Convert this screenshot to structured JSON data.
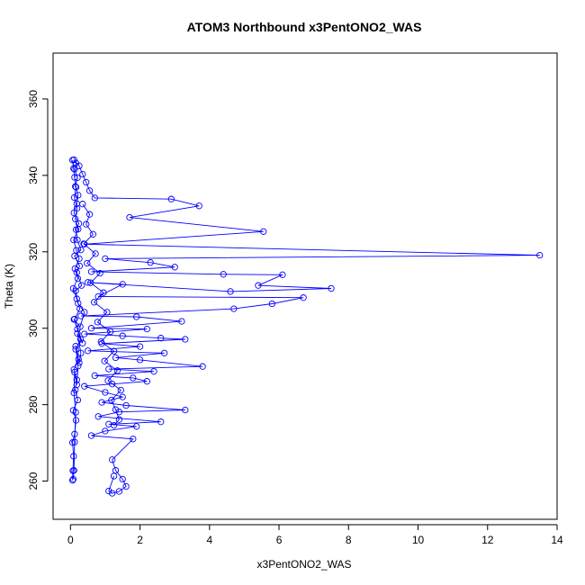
{
  "chart_data": {
    "type": "line",
    "title": "ATOM3 Northbound x3PentONO2_WAS",
    "xlabel": "x3PentONO2_WAS",
    "ylabel": "Theta (K)",
    "xlim": [
      -0.5,
      14
    ],
    "ylim": [
      250,
      372
    ],
    "xticks": [
      0,
      2,
      4,
      6,
      8,
      10,
      12,
      14
    ],
    "yticks": [
      260,
      280,
      300,
      320,
      340,
      360
    ],
    "grid": false,
    "marker": "open-circle",
    "color": "#0000ff",
    "series": [
      {
        "points": [
          [
            0.08,
            260.5
          ],
          [
            0.1,
            262.8
          ],
          [
            0.12,
            270.2
          ],
          [
            0.15,
            278.0
          ],
          [
            0.1,
            283.1
          ],
          [
            0.12,
            288.5
          ],
          [
            0.18,
            285.2
          ],
          [
            0.22,
            290.1
          ],
          [
            0.15,
            295.3
          ],
          [
            0.25,
            291.0
          ],
          [
            0.3,
            293.5
          ],
          [
            0.2,
            298.6
          ],
          [
            0.35,
            296.1
          ],
          [
            0.1,
            302.3
          ],
          [
            0.28,
            300.4
          ],
          [
            0.4,
            304.2
          ],
          [
            0.22,
            306.5
          ],
          [
            0.15,
            309.8
          ],
          [
            0.32,
            311.2
          ],
          [
            0.18,
            314.6
          ],
          [
            0.26,
            316.3
          ],
          [
            0.12,
            318.9
          ],
          [
            0.3,
            320.5
          ],
          [
            0.2,
            323.1
          ],
          [
            0.16,
            325.8
          ],
          [
            0.24,
            327.4
          ],
          [
            0.1,
            330.2
          ],
          [
            0.18,
            332.6
          ],
          [
            0.22,
            334.8
          ],
          [
            0.14,
            337.1
          ],
          [
            0.2,
            339.4
          ],
          [
            0.12,
            341.6
          ],
          [
            0.16,
            343.2
          ],
          [
            0.1,
            344.1
          ],
          [
            0.25,
            342.5
          ],
          [
            0.35,
            340.3
          ],
          [
            0.45,
            338.2
          ],
          [
            0.55,
            336.0
          ],
          [
            0.7,
            334.1
          ],
          [
            2.9,
            333.8
          ],
          [
            3.7,
            332.0
          ],
          [
            1.7,
            329.0
          ],
          [
            5.55,
            325.3
          ],
          [
            0.4,
            322.0
          ],
          [
            13.5,
            319.1
          ],
          [
            1.0,
            318.2
          ],
          [
            2.3,
            317.2
          ],
          [
            3.0,
            316.0
          ],
          [
            0.6,
            314.8
          ],
          [
            4.4,
            314.1
          ],
          [
            6.1,
            314.0
          ],
          [
            5.4,
            311.2
          ],
          [
            7.5,
            310.4
          ],
          [
            4.6,
            309.6
          ],
          [
            0.5,
            312.0
          ],
          [
            1.5,
            311.5
          ],
          [
            0.8,
            308.3
          ],
          [
            6.7,
            308.0
          ],
          [
            5.8,
            306.4
          ],
          [
            4.7,
            305.1
          ],
          [
            0.3,
            303.2
          ],
          [
            1.9,
            303.0
          ],
          [
            3.2,
            301.8
          ],
          [
            0.6,
            300.0
          ],
          [
            2.2,
            299.8
          ],
          [
            0.4,
            298.5
          ],
          [
            1.5,
            298.0
          ],
          [
            2.6,
            297.4
          ],
          [
            3.3,
            297.1
          ],
          [
            0.9,
            296.0
          ],
          [
            2.0,
            295.2
          ],
          [
            0.5,
            294.1
          ],
          [
            2.7,
            293.5
          ],
          [
            1.3,
            292.3
          ],
          [
            2.0,
            291.7
          ],
          [
            3.8,
            290.0
          ],
          [
            1.1,
            289.3
          ],
          [
            2.4,
            288.7
          ],
          [
            0.7,
            287.6
          ],
          [
            1.8,
            287.0
          ],
          [
            2.2,
            286.1
          ],
          [
            1.2,
            285.4
          ],
          [
            0.4,
            284.8
          ],
          [
            1.0,
            283.2
          ],
          [
            1.5,
            282.0
          ],
          [
            0.9,
            280.6
          ],
          [
            1.6,
            279.8
          ],
          [
            3.3,
            278.6
          ],
          [
            1.4,
            278.1
          ],
          [
            0.8,
            276.9
          ],
          [
            2.6,
            275.5
          ],
          [
            1.1,
            274.9
          ],
          [
            1.9,
            274.3
          ],
          [
            1.0,
            273.1
          ],
          [
            0.6,
            271.9
          ],
          [
            1.8,
            271.0
          ],
          [
            1.2,
            265.6
          ],
          [
            1.3,
            262.8
          ],
          [
            1.5,
            260.5
          ],
          [
            1.6,
            258.6
          ],
          [
            1.4,
            257.3
          ],
          [
            1.2,
            256.8
          ],
          [
            1.1,
            257.4
          ],
          [
            1.25,
            261.3
          ]
        ]
      },
      {
        "points": [
          [
            0.06,
            344.0
          ],
          [
            0.09,
            341.8
          ],
          [
            0.12,
            339.5
          ],
          [
            0.16,
            336.9
          ],
          [
            0.11,
            334.2
          ],
          [
            0.19,
            331.4
          ],
          [
            0.14,
            328.6
          ],
          [
            0.22,
            325.9
          ],
          [
            0.09,
            323.1
          ],
          [
            0.17,
            320.4
          ],
          [
            0.25,
            318.2
          ],
          [
            0.13,
            315.6
          ],
          [
            0.21,
            313.0
          ],
          [
            0.08,
            310.4
          ],
          [
            0.18,
            307.7
          ],
          [
            0.27,
            305.1
          ],
          [
            0.12,
            302.4
          ],
          [
            0.2,
            299.8
          ],
          [
            0.29,
            297.1
          ],
          [
            0.15,
            294.5
          ],
          [
            0.23,
            291.9
          ],
          [
            0.1,
            289.2
          ],
          [
            0.18,
            286.5
          ],
          [
            0.14,
            283.9
          ],
          [
            0.21,
            281.2
          ],
          [
            0.08,
            278.5
          ],
          [
            0.16,
            275.9
          ],
          [
            0.12,
            272.3
          ],
          [
            0.06,
            270.1
          ],
          [
            0.09,
            266.5
          ],
          [
            0.07,
            262.7
          ],
          [
            0.06,
            260.2
          ]
        ]
      },
      {
        "points": [
          [
            0.35,
            332.5
          ],
          [
            0.55,
            329.8
          ],
          [
            0.45,
            327.2
          ],
          [
            0.65,
            324.6
          ],
          [
            0.38,
            322.1
          ],
          [
            0.72,
            319.5
          ],
          [
            0.48,
            317.0
          ],
          [
            0.85,
            314.4
          ],
          [
            0.58,
            311.9
          ],
          [
            0.95,
            309.3
          ],
          [
            0.68,
            306.8
          ],
          [
            1.05,
            304.2
          ],
          [
            0.78,
            301.6
          ],
          [
            1.15,
            299.1
          ],
          [
            0.88,
            296.5
          ],
          [
            1.25,
            294.0
          ],
          [
            0.98,
            291.4
          ],
          [
            1.35,
            288.9
          ],
          [
            1.08,
            286.3
          ],
          [
            1.45,
            283.8
          ],
          [
            1.18,
            281.2
          ],
          [
            1.3,
            278.7
          ],
          [
            1.4,
            276.1
          ],
          [
            1.25,
            274.6
          ]
        ]
      }
    ]
  }
}
